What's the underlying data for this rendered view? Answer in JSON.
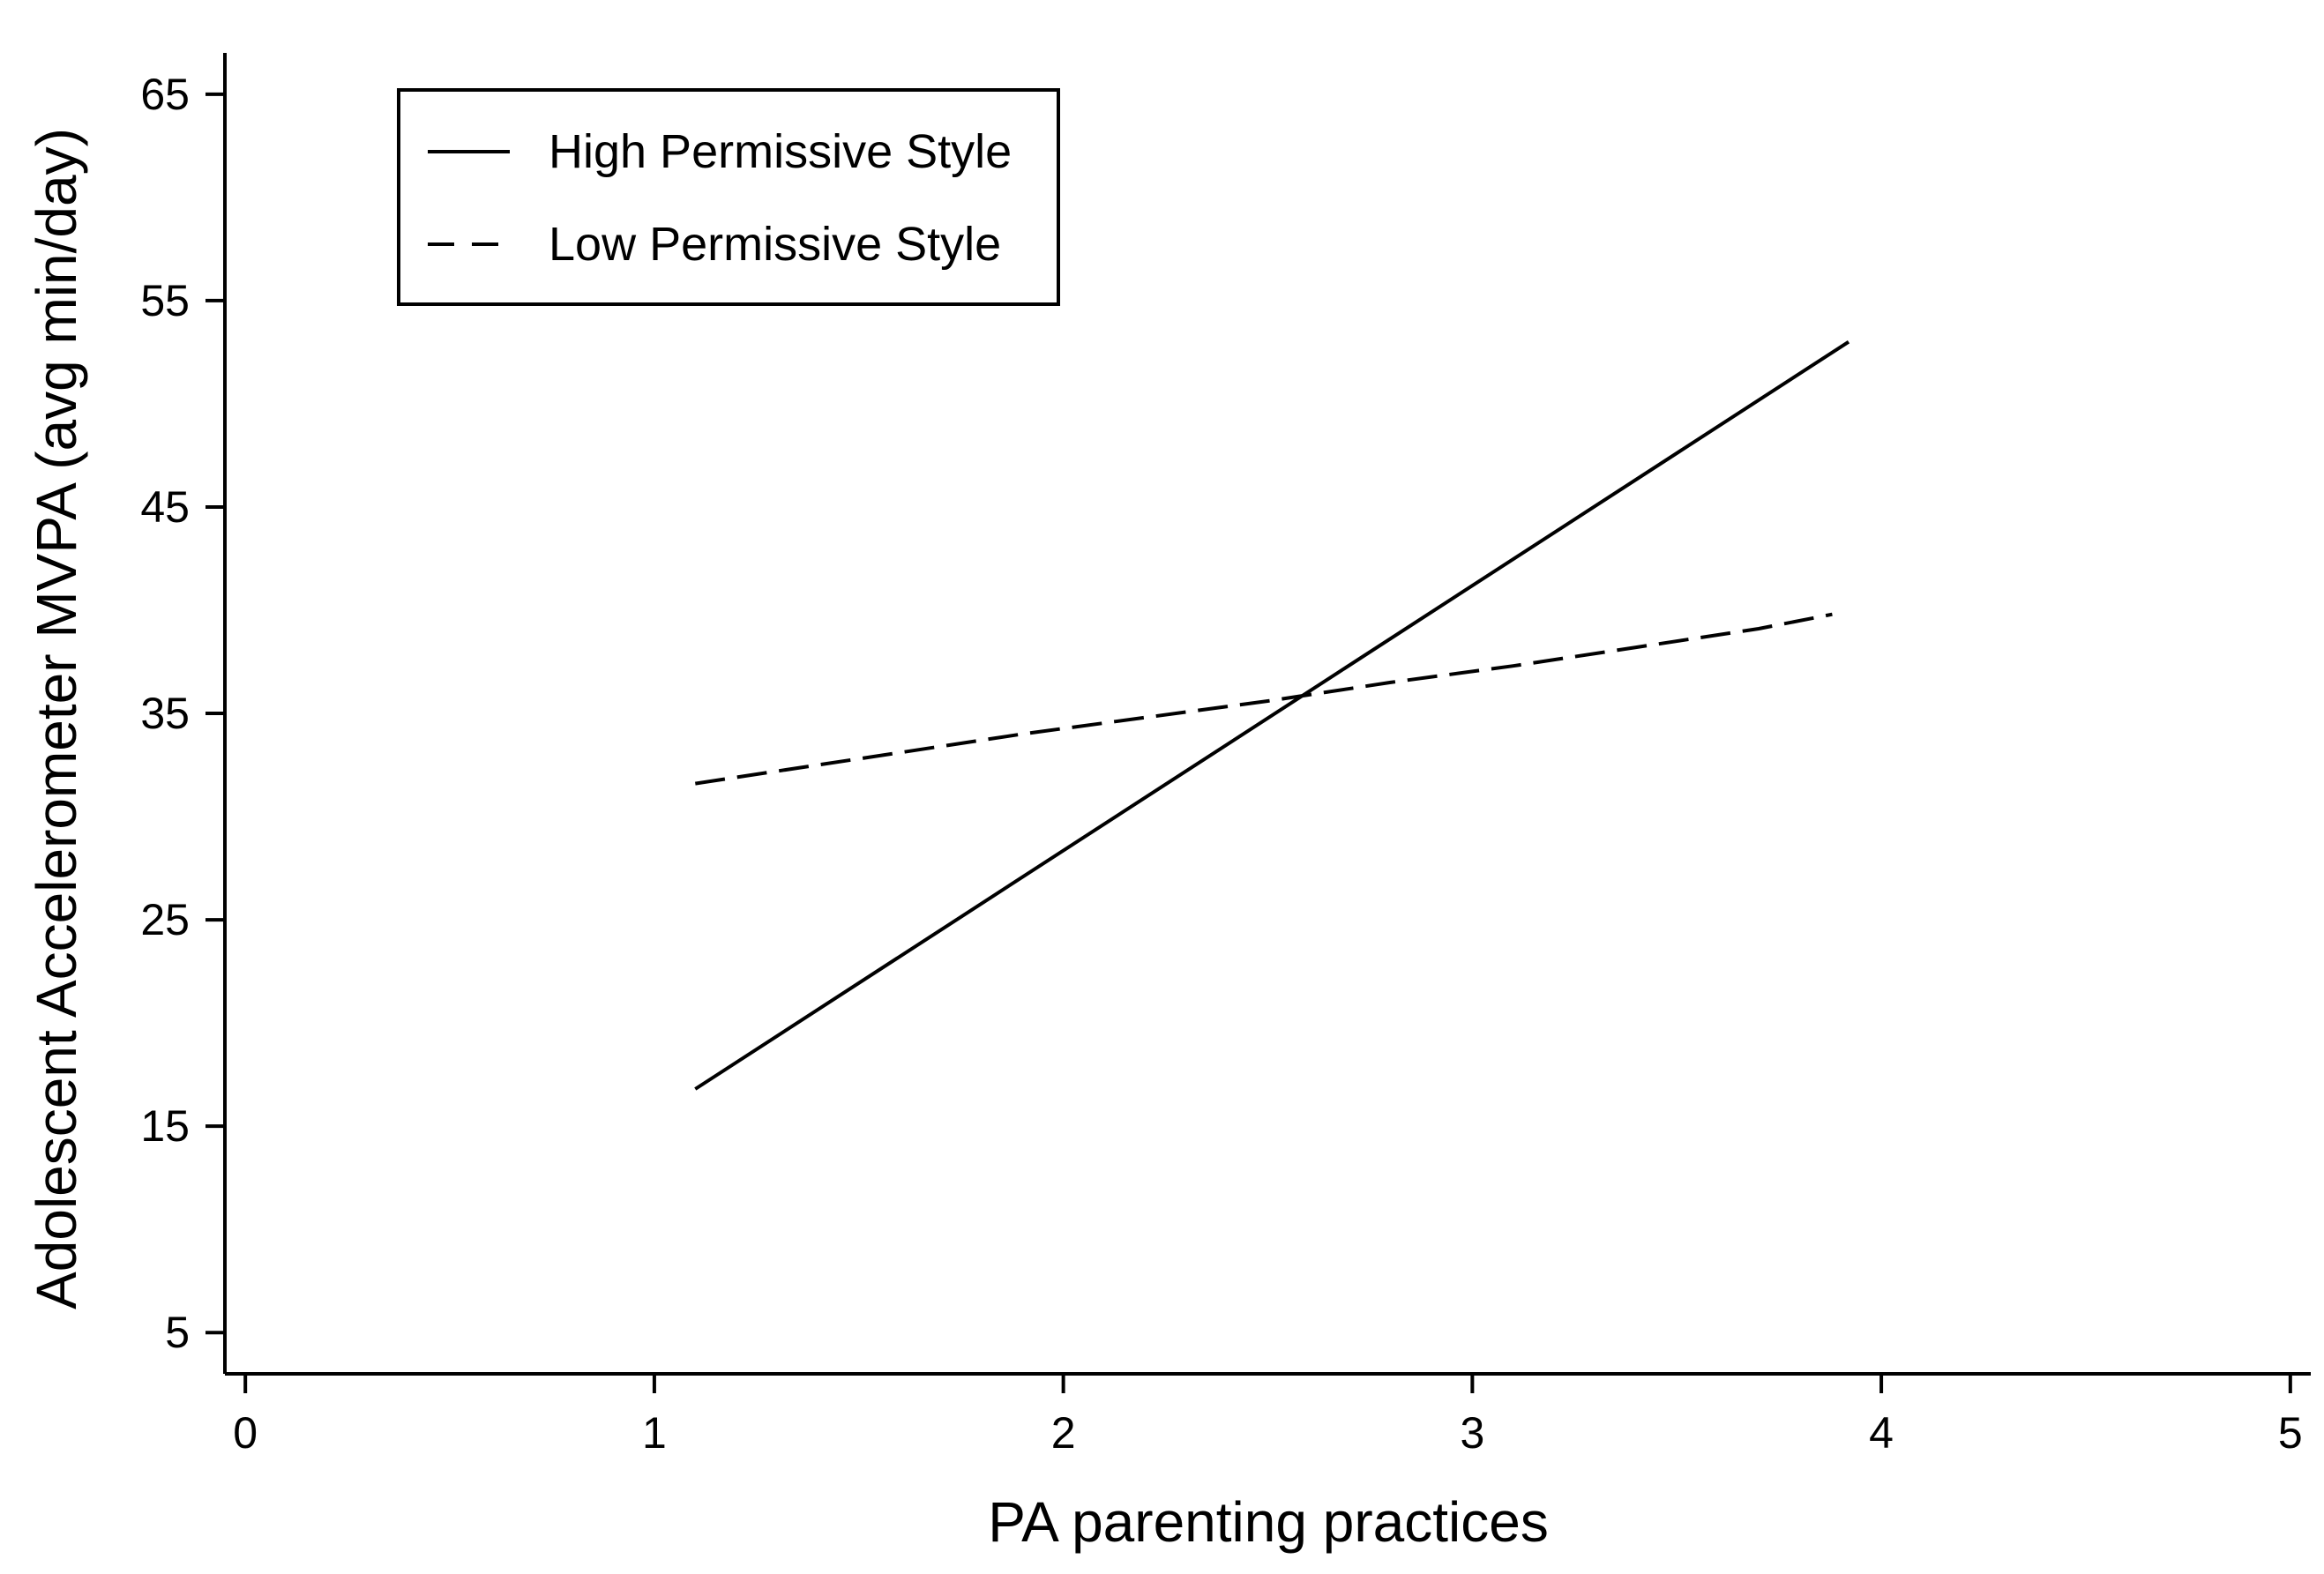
{
  "chart_data": {
    "type": "line",
    "title": "",
    "xlabel": "PA parenting practices",
    "ylabel": "Adolescent Accelerometer MVPA (avg min/day)",
    "xlim": [
      -0.05,
      5.05
    ],
    "ylim": [
      3,
      67
    ],
    "xticks": [
      0,
      1,
      2,
      3,
      4,
      5
    ],
    "yticks": [
      5,
      15,
      25,
      35,
      45,
      55,
      65
    ],
    "grid": false,
    "legend_position": "top-left",
    "series": [
      {
        "name": "High Permissive Style",
        "line_style": "solid",
        "color": "#000000",
        "x": [
          1.1,
          3.92
        ],
        "y": [
          16.8,
          53.0
        ]
      },
      {
        "name": "Low Permissive Style",
        "line_style": "dashed",
        "color": "#000000",
        "x": [
          1.1,
          1.3,
          1.6,
          1.9,
          2.2,
          2.5,
          2.8,
          3.1,
          3.4,
          3.7,
          3.88
        ],
        "y": [
          31.6,
          32.2,
          33.1,
          34.0,
          34.8,
          35.6,
          36.5,
          37.3,
          38.2,
          39.1,
          39.8
        ]
      }
    ]
  }
}
